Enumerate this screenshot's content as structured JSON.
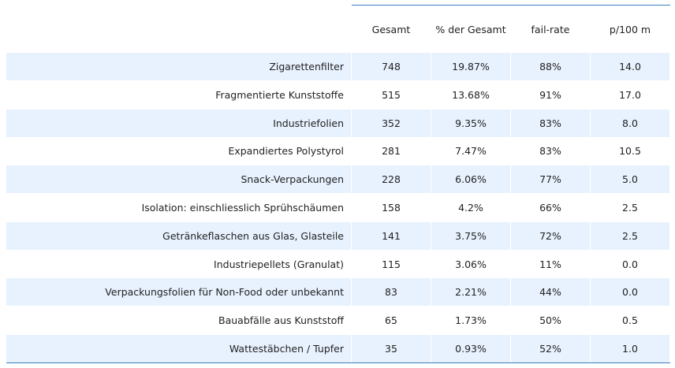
{
  "chart_data": {
    "type": "table",
    "columns": [
      "Gesamt",
      "% der Gesamt",
      "fail-rate",
      "p/100 m"
    ],
    "rows": [
      {
        "label": "Zigarettenfilter",
        "values": [
          "748",
          "19.87%",
          "88%",
          "14.0"
        ]
      },
      {
        "label": "Fragmentierte Kunststoffe",
        "values": [
          "515",
          "13.68%",
          "91%",
          "17.0"
        ]
      },
      {
        "label": "Industriefolien",
        "values": [
          "352",
          "9.35%",
          "83%",
          "8.0"
        ]
      },
      {
        "label": "Expandiertes Polystyrol",
        "values": [
          "281",
          "7.47%",
          "83%",
          "10.5"
        ]
      },
      {
        "label": "Snack-Verpackungen",
        "values": [
          "228",
          "6.06%",
          "77%",
          "5.0"
        ]
      },
      {
        "label": "Isolation: einschliesslich Sprühschäumen",
        "values": [
          "158",
          "4.2%",
          "66%",
          "2.5"
        ]
      },
      {
        "label": "Getränkeflaschen aus Glas, Glasteile",
        "values": [
          "141",
          "3.75%",
          "72%",
          "2.5"
        ]
      },
      {
        "label": "Industriepellets (Granulat)",
        "values": [
          "115",
          "3.06%",
          "11%",
          "0.0"
        ]
      },
      {
        "label": "Verpackungsfolien für Non-Food oder unbekannt",
        "values": [
          "83",
          "2.21%",
          "44%",
          "0.0"
        ]
      },
      {
        "label": "Bauabfälle aus Kunststoff",
        "values": [
          "65",
          "1.73%",
          "50%",
          "0.5"
        ]
      },
      {
        "label": "Wattestäbchen / Tupfer",
        "values": [
          "35",
          "0.93%",
          "52%",
          "1.0"
        ]
      }
    ],
    "colors": {
      "band": "#e8f2fe",
      "rule": "#3a7fc0",
      "text": "#222222"
    }
  }
}
